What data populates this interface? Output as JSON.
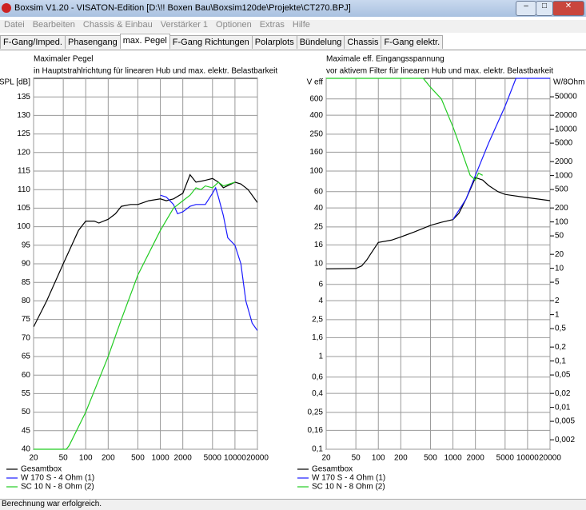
{
  "window": {
    "title": "Boxsim V1.20 - VISATON-Edition [D:\\!!   Boxen Bau\\Boxsim120de\\Projekte\\CT270.BPJ]"
  },
  "menu": [
    "Datei",
    "Bearbeiten",
    "Chassis & Einbau",
    "Verstärker 1",
    "Optionen",
    "Extras",
    "Hilfe"
  ],
  "tabs": [
    "F-Gang/Imped.",
    "Phasengang",
    "max. Pegel",
    "F-Gang Richtungen",
    "Polarplots",
    "Bündelung",
    "Chassis",
    "F-Gang elektr."
  ],
  "active_tab": 2,
  "charts": [
    {
      "type": "line",
      "title": "Maximaler Pegel",
      "subtitle": "in Hauptstrahlrichtung für linearen Hub und max. elektr. Belastbarkeit",
      "ylabel": "SPL [dB]",
      "xlog": true,
      "xlim": [
        20,
        20000
      ],
      "xticks": [
        20,
        50,
        100,
        200,
        500,
        1000,
        2000,
        5000,
        10000,
        20000
      ],
      "ylim": [
        40,
        140
      ],
      "yticks": [
        40,
        45,
        50,
        55,
        60,
        65,
        70,
        75,
        80,
        85,
        90,
        95,
        100,
        105,
        110,
        115,
        120,
        125,
        130,
        135
      ],
      "grid": true,
      "series": [
        {
          "name": "Gesamtbox",
          "color": "#000000",
          "x": [
            20,
            30,
            50,
            80,
            100,
            130,
            150,
            200,
            250,
            300,
            400,
            500,
            700,
            1000,
            1200,
            1500,
            2000,
            2500,
            3000,
            4000,
            5000,
            6000,
            7000,
            10000,
            12000,
            15000,
            20000
          ],
          "values": [
            73,
            80,
            90,
            99,
            101.5,
            101.5,
            101,
            102,
            103.5,
            105.5,
            106,
            106,
            107,
            107.5,
            107,
            107.5,
            109,
            114,
            112,
            112.5,
            113,
            112,
            110.5,
            112,
            111.5,
            110,
            106.5
          ]
        },
        {
          "name": "W 170 S - 4 Ohm (1)",
          "color": "#1a1aff",
          "x": [
            1000,
            1200,
            1500,
            1700,
            2000,
            2500,
            3000,
            4000,
            5000,
            5500,
            6000,
            7000,
            8000,
            10000,
            12000,
            14000,
            17000,
            20000
          ],
          "values": [
            108.5,
            108,
            106,
            103.5,
            104,
            105.5,
            106,
            106,
            109,
            110.5,
            108,
            103,
            97,
            95,
            90,
            80,
            74,
            72
          ]
        },
        {
          "name": "SC 10 N - 8 Ohm (2)",
          "color": "#22cc22",
          "x": [
            20,
            55,
            60,
            100,
            200,
            300,
            500,
            1000,
            1500,
            2000,
            2500,
            3000,
            3500,
            4000,
            5000,
            6000,
            7000,
            10000
          ],
          "values": [
            40,
            40,
            41,
            50,
            65,
            75,
            87,
            99,
            105,
            107,
            108.5,
            110.5,
            110,
            111,
            110.5,
            112,
            111,
            112
          ]
        }
      ]
    },
    {
      "type": "line",
      "title": "Maximale eff. Eingangsspannung",
      "subtitle": "vor aktivem Filter für linearen Hub und max. elektr. Belastbarkeit",
      "ylabel": "V eff",
      "y2label": "W/8Ohm",
      "xlog": true,
      "xlim": [
        20,
        20000
      ],
      "xticks": [
        20,
        50,
        100,
        200,
        500,
        1000,
        2000,
        5000,
        10000,
        20000
      ],
      "ylog": true,
      "ylim": [
        0.1,
        1000
      ],
      "yticks": [
        {
          "value": 0.1,
          "label": "0,1"
        },
        {
          "value": 0.16,
          "label": "0,16"
        },
        {
          "value": 0.25,
          "label": "0,25"
        },
        {
          "value": 0.4,
          "label": "0,4"
        },
        {
          "value": 0.6,
          "label": "0,6"
        },
        1,
        {
          "value": 1.6,
          "label": "1,6"
        },
        {
          "value": 2.5,
          "label": "2,5"
        },
        4,
        6,
        10,
        16,
        25,
        40,
        60,
        100,
        160,
        250,
        400,
        600
      ],
      "y2lim": [
        0.00125,
        125000
      ],
      "y2ticks": [
        {
          "value": 0.002,
          "label": "0,002"
        },
        {
          "value": 0.005,
          "label": "0,005"
        },
        {
          "value": 0.01,
          "label": "0,01"
        },
        {
          "value": 0.02,
          "label": "0,02"
        },
        {
          "value": 0.05,
          "label": "0,05"
        },
        {
          "value": 0.1,
          "label": "0,1"
        },
        {
          "value": 0.2,
          "label": "0,2"
        },
        {
          "value": 0.5,
          "label": "0,5"
        },
        1,
        2,
        5,
        10,
        20,
        50,
        100,
        200,
        500,
        1000,
        2000,
        5000,
        10000,
        20000,
        50000
      ],
      "grid": true,
      "series": [
        {
          "name": "Gesamtbox",
          "color": "#000000",
          "x": [
            20,
            50,
            60,
            70,
            80,
            100,
            150,
            200,
            300,
            500,
            700,
            1000,
            1200,
            1500,
            1800,
            2000,
            2500,
            3000,
            4000,
            5000,
            8000,
            20000
          ],
          "values": [
            8.8,
            8.9,
            9.5,
            11,
            13,
            17,
            18,
            19.5,
            22,
            26,
            28,
            30,
            35,
            50,
            70,
            85,
            80,
            70,
            60,
            56,
            53,
            48
          ]
        },
        {
          "name": "W 170 S - 4 Ohm (1)",
          "color": "#1a1aff",
          "x": [
            1000,
            1500,
            2000,
            3000,
            5000,
            7000,
            20000
          ],
          "values": [
            30,
            50,
            90,
            200,
            500,
            1000,
            1000
          ]
        },
        {
          "name": "SC 10 N - 8 Ohm (2)",
          "color": "#22cc22",
          "x": [
            20,
            400,
            500,
            700,
            1000,
            1200,
            1500,
            1700,
            2000,
            2200,
            2500
          ],
          "values": [
            1000,
            1000,
            800,
            600,
            300,
            200,
            120,
            90,
            80,
            95,
            90
          ]
        }
      ]
    }
  ],
  "status": "Berechnung war erfolgreich."
}
